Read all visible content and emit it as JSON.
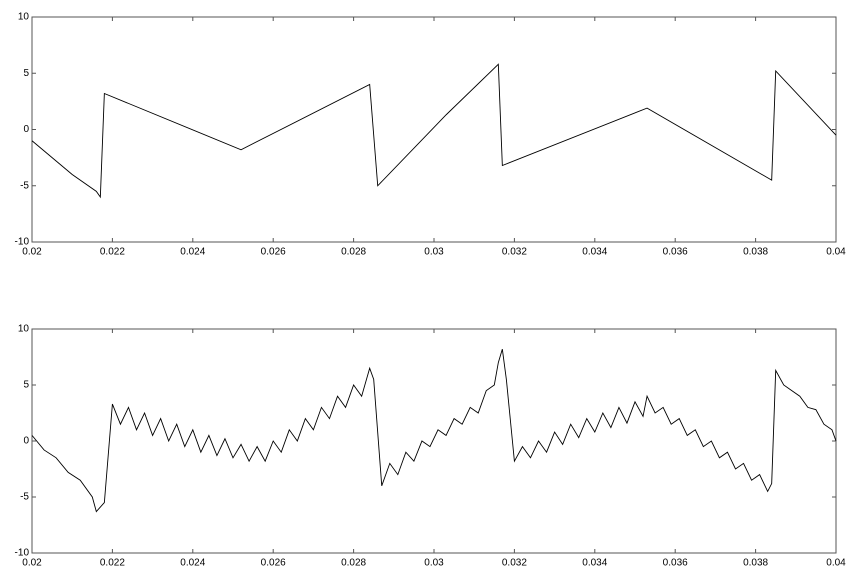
{
  "chart_data": [
    {
      "type": "line",
      "x": [
        0.02,
        0.021,
        0.0216,
        0.0217,
        0.0218,
        0.0252,
        0.0284,
        0.0286,
        0.0303,
        0.0316,
        0.0317,
        0.0353,
        0.0384,
        0.0385,
        0.04
      ],
      "series": [
        {
          "color": "#000000",
          "values": [
            -1.0,
            -4.0,
            -5.5,
            -6.0,
            3.2,
            -1.8,
            4.0,
            -5.0,
            1.3,
            5.8,
            -3.2,
            1.9,
            -4.5,
            5.2,
            -0.5
          ]
        }
      ],
      "xlim": [
        0.02,
        0.04
      ],
      "ylim": [
        -10,
        10
      ],
      "xticks": [
        0.02,
        0.022,
        0.024,
        0.026,
        0.028,
        0.03,
        0.032,
        0.034,
        0.036,
        0.038,
        0.04
      ],
      "yticks": [
        -10,
        -5,
        0,
        5,
        10
      ]
    },
    {
      "type": "line",
      "x": [
        0.02,
        0.0203,
        0.0206,
        0.0209,
        0.0212,
        0.0215,
        0.0216,
        0.0218,
        0.022,
        0.0222,
        0.0224,
        0.0226,
        0.0228,
        0.023,
        0.0232,
        0.0234,
        0.0236,
        0.0238,
        0.024,
        0.0242,
        0.0244,
        0.0246,
        0.0248,
        0.025,
        0.0252,
        0.0254,
        0.0256,
        0.0258,
        0.026,
        0.0262,
        0.0264,
        0.0266,
        0.0268,
        0.027,
        0.0272,
        0.0274,
        0.0276,
        0.0278,
        0.028,
        0.0282,
        0.0284,
        0.0285,
        0.0287,
        0.0289,
        0.0291,
        0.0293,
        0.0295,
        0.0297,
        0.0299,
        0.0301,
        0.0303,
        0.0305,
        0.0307,
        0.0309,
        0.0311,
        0.0313,
        0.0315,
        0.0316,
        0.0317,
        0.0318,
        0.032,
        0.0322,
        0.0324,
        0.0326,
        0.0328,
        0.033,
        0.0332,
        0.0334,
        0.0336,
        0.0338,
        0.034,
        0.0342,
        0.0344,
        0.0346,
        0.0348,
        0.035,
        0.0352,
        0.0353,
        0.0355,
        0.0357,
        0.0359,
        0.0361,
        0.0363,
        0.0365,
        0.0367,
        0.0369,
        0.0371,
        0.0373,
        0.0375,
        0.0377,
        0.0379,
        0.0381,
        0.0383,
        0.0384,
        0.0385,
        0.0387,
        0.0389,
        0.0391,
        0.0393,
        0.0395,
        0.0397,
        0.0399,
        0.04
      ],
      "series": [
        {
          "color": "#000000",
          "values": [
            0.5,
            -0.8,
            -1.5,
            -2.8,
            -3.5,
            -5.0,
            -6.3,
            -5.5,
            3.3,
            1.5,
            3.0,
            1.0,
            2.5,
            0.5,
            2.0,
            0.0,
            1.5,
            -0.5,
            1.0,
            -1.0,
            0.5,
            -1.3,
            0.2,
            -1.5,
            -0.3,
            -1.8,
            -0.5,
            -1.8,
            0.0,
            -1.0,
            1.0,
            0.0,
            2.0,
            1.0,
            3.0,
            2.0,
            4.0,
            3.0,
            5.0,
            4.0,
            6.5,
            5.5,
            -4.0,
            -2.0,
            -3.0,
            -1.0,
            -1.8,
            0.0,
            -0.5,
            1.0,
            0.5,
            2.0,
            1.5,
            3.0,
            2.5,
            4.5,
            5.0,
            7.0,
            8.2,
            5.5,
            -1.8,
            -0.5,
            -1.5,
            0.0,
            -1.0,
            0.8,
            -0.3,
            1.5,
            0.3,
            2.0,
            0.8,
            2.5,
            1.2,
            3.0,
            1.6,
            3.5,
            2.2,
            4.0,
            2.5,
            3.0,
            1.5,
            2.0,
            0.5,
            1.0,
            -0.5,
            0.0,
            -1.5,
            -1.0,
            -2.5,
            -2.0,
            -3.5,
            -3.0,
            -4.5,
            -3.8,
            6.3,
            5.0,
            4.5,
            4.0,
            3.0,
            2.8,
            1.5,
            1.0,
            0.0
          ]
        }
      ],
      "xlim": [
        0.02,
        0.04
      ],
      "ylim": [
        -10,
        10
      ],
      "xticks": [
        0.02,
        0.022,
        0.024,
        0.026,
        0.028,
        0.03,
        0.032,
        0.034,
        0.036,
        0.038,
        0.04
      ],
      "yticks": [
        -10,
        -5,
        0,
        5,
        10
      ]
    }
  ]
}
